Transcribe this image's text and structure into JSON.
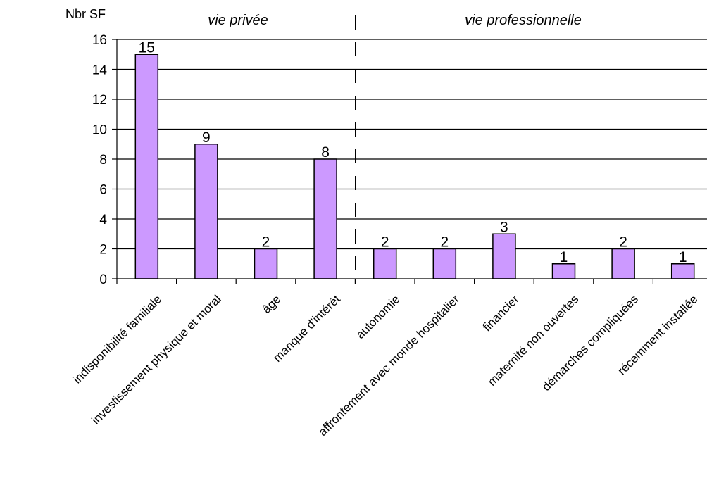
{
  "chart_data": {
    "type": "bar",
    "ylabel": "Nbr SF",
    "ylim": [
      0,
      16
    ],
    "yticks": [
      0,
      2,
      4,
      6,
      8,
      10,
      12,
      14,
      16
    ],
    "grid": true,
    "categories": [
      "indisponibilité familiale",
      "investissement physique et moral",
      "âge",
      "manque d'intérêt",
      "autonomie",
      "affrontement avec monde hospitalier",
      "financier",
      "maternité non ouvertes",
      "démarches compliquées",
      "récemment installée"
    ],
    "values": [
      15,
      9,
      2,
      8,
      2,
      2,
      3,
      1,
      2,
      1
    ],
    "bar_color": "#cc99ff",
    "groups": [
      {
        "label": "vie privée",
        "categories": [
          0,
          1,
          2,
          3
        ]
      },
      {
        "label": "vie professionnelle",
        "categories": [
          4,
          5,
          6,
          7,
          8,
          9
        ]
      }
    ]
  }
}
